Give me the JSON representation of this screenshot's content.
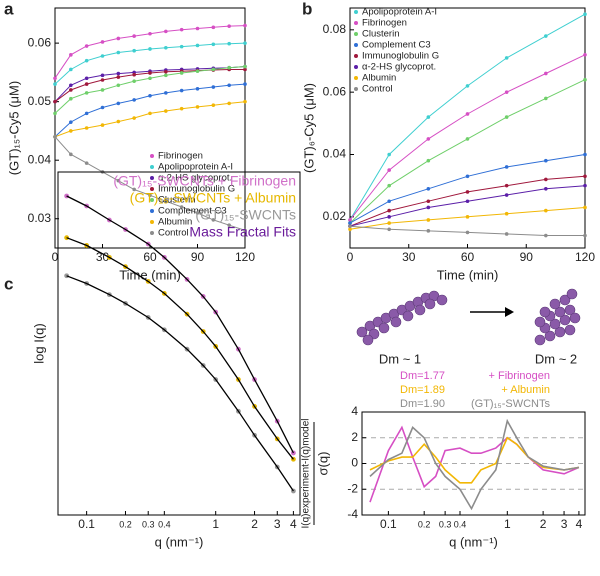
{
  "panel_labels": [
    "a",
    "b",
    "c"
  ],
  "schematic": {
    "left": "Dm ~ 1",
    "right": "Dm ~ 2"
  },
  "chart_data": [
    {
      "type": "line",
      "marker": "dots",
      "x_label": "Time (min)",
      "y_label": "(GT)₁₅-Cy5 (μM)",
      "x": [
        0,
        10,
        20,
        30,
        40,
        50,
        60,
        70,
        80,
        90,
        100,
        110,
        120
      ],
      "xlim": [
        0,
        120
      ],
      "xticks": [
        0,
        30,
        60,
        90,
        120
      ],
      "ylim": [
        0.025,
        0.066
      ],
      "yticks": [
        0.03,
        0.04,
        0.05,
        0.06
      ],
      "legend": "lower right",
      "series": [
        {
          "name": "Fibrinogen",
          "color": "#d64fc4",
          "values": [
            0.054,
            0.058,
            0.0595,
            0.0602,
            0.0608,
            0.0612,
            0.0616,
            0.062,
            0.0623,
            0.0625,
            0.0627,
            0.0629,
            0.063
          ]
        },
        {
          "name": "Apolipoprotein A-I",
          "color": "#3fcfd0",
          "values": [
            0.053,
            0.0555,
            0.057,
            0.0578,
            0.0584,
            0.0587,
            0.059,
            0.0592,
            0.0594,
            0.0596,
            0.0598,
            0.0599,
            0.06
          ]
        },
        {
          "name": "α-2-HS glycoprot.",
          "color": "#5b1fa8",
          "values": [
            0.05,
            0.0528,
            0.054,
            0.0545,
            0.0548,
            0.055,
            0.0552,
            0.0554,
            0.0555,
            0.0556,
            0.0557,
            0.0558,
            0.056
          ]
        },
        {
          "name": "Immunoglobulin G",
          "color": "#a0183c",
          "values": [
            0.05,
            0.052,
            0.053,
            0.0537,
            0.0542,
            0.0546,
            0.0549,
            0.0551,
            0.0552,
            0.0553,
            0.0554,
            0.0555,
            0.0555
          ]
        },
        {
          "name": "Clusterin",
          "color": "#6fcf6a",
          "values": [
            0.048,
            0.0505,
            0.0515,
            0.052,
            0.0528,
            0.0535,
            0.054,
            0.0545,
            0.0549,
            0.0552,
            0.0555,
            0.0558,
            0.056
          ]
        },
        {
          "name": "Complement C3",
          "color": "#2f6fd6",
          "values": [
            0.044,
            0.0465,
            0.048,
            0.049,
            0.0497,
            0.0503,
            0.051,
            0.0515,
            0.0519,
            0.0522,
            0.0525,
            0.0528,
            0.053
          ]
        },
        {
          "name": "Albumin",
          "color": "#f2b705",
          "values": [
            0.044,
            0.045,
            0.0455,
            0.046,
            0.0466,
            0.0472,
            0.048,
            0.0484,
            0.0488,
            0.0491,
            0.0494,
            0.0497,
            0.05
          ]
        },
        {
          "name": "Control",
          "color": "#8c8c8c",
          "values": [
            0.044,
            0.041,
            0.0395,
            0.038,
            0.0365,
            0.035,
            0.034,
            0.033,
            0.032,
            0.031,
            0.0298,
            0.0289,
            0.028
          ]
        }
      ]
    },
    {
      "type": "line",
      "marker": "dots",
      "x_label": "Time (min)",
      "y_label": "(GT)₆-Cy5 (μM)",
      "x": [
        0,
        20,
        40,
        60,
        80,
        100,
        120
      ],
      "xlim": [
        0,
        120
      ],
      "xticks": [
        0,
        30,
        60,
        90,
        120
      ],
      "ylim": [
        0.01,
        0.087
      ],
      "yticks": [
        0.02,
        0.04,
        0.06,
        0.08
      ],
      "legend": "upper left",
      "series": [
        {
          "name": "Apolipoprotein A-I",
          "color": "#3fcfd0",
          "values": [
            0.019,
            0.04,
            0.052,
            0.062,
            0.071,
            0.078,
            0.085
          ]
        },
        {
          "name": "Fibrinogen",
          "color": "#d64fc4",
          "values": [
            0.019,
            0.035,
            0.045,
            0.053,
            0.06,
            0.066,
            0.072
          ]
        },
        {
          "name": "Clusterin",
          "color": "#6fcf6a",
          "values": [
            0.018,
            0.03,
            0.038,
            0.045,
            0.052,
            0.058,
            0.064
          ]
        },
        {
          "name": "Complement C3",
          "color": "#2f6fd6",
          "values": [
            0.018,
            0.025,
            0.029,
            0.033,
            0.036,
            0.038,
            0.04
          ]
        },
        {
          "name": "Immunoglobulin G",
          "color": "#a0183c",
          "values": [
            0.017,
            0.022,
            0.025,
            0.028,
            0.03,
            0.032,
            0.033
          ]
        },
        {
          "name": "α-2-HS glycoprot.",
          "color": "#5b1fa8",
          "values": [
            0.017,
            0.02,
            0.023,
            0.025,
            0.027,
            0.029,
            0.03
          ]
        },
        {
          "name": "Albumin",
          "color": "#f2b705",
          "values": [
            0.016,
            0.018,
            0.019,
            0.02,
            0.021,
            0.022,
            0.023
          ]
        },
        {
          "name": "Control",
          "color": "#8c8c8c",
          "values": [
            0.017,
            0.016,
            0.0155,
            0.015,
            0.0145,
            0.014,
            0.014
          ]
        }
      ]
    },
    {
      "type": "scatter",
      "x_label": "q (nm⁻¹)",
      "y_label": "log I(q)",
      "xscale": "log",
      "yscale": "log",
      "x": [
        0.07,
        0.1,
        0.15,
        0.2,
        0.3,
        0.4,
        0.6,
        0.8,
        1,
        1.5,
        2,
        3,
        4
      ],
      "xlim": [
        0.06,
        4.5
      ],
      "xticks": [
        0.1,
        0.2,
        0.3,
        0.4,
        1,
        2,
        3,
        4
      ],
      "ylim": [
        0.0001,
        2
      ],
      "fit_label": "Mass Fractal Fits",
      "fit_label_color": "#6a1b9a",
      "fit_color": "#000000",
      "series": [
        {
          "name": "(GT)₁₅-SWCNTs + Fibrinogen",
          "color": "#d070c8",
          "values": [
            1.0,
            0.75,
            0.5,
            0.38,
            0.25,
            0.17,
            0.09,
            0.055,
            0.035,
            0.012,
            0.005,
            0.0015,
            0.0006
          ]
        },
        {
          "name": "(GT)₁₅-SWCNTs + Albumin",
          "color": "#e6b800",
          "values": [
            0.3,
            0.24,
            0.17,
            0.13,
            0.085,
            0.06,
            0.033,
            0.02,
            0.013,
            0.005,
            0.0023,
            0.0009,
            0.0005
          ]
        },
        {
          "name": "(GT)₁₅-SWCNTs",
          "color": "#999999",
          "values": [
            0.1,
            0.08,
            0.058,
            0.045,
            0.03,
            0.021,
            0.012,
            0.0075,
            0.005,
            0.002,
            0.001,
            0.0004,
            0.0002
          ]
        }
      ]
    },
    {
      "type": "line",
      "x_label": "q (nm⁻¹)",
      "y_label": "I(q)experiment-I(q)model",
      "y_label_denominator": "σ(q)",
      "xscale": "log",
      "x": [
        0.07,
        0.1,
        0.13,
        0.16,
        0.2,
        0.25,
        0.3,
        0.4,
        0.5,
        0.6,
        0.8,
        1,
        1.2,
        1.5,
        2,
        3,
        4
      ],
      "xlim": [
        0.06,
        4.5
      ],
      "xticks": [
        0.1,
        0.2,
        0.3,
        0.4,
        1,
        2,
        3,
        4
      ],
      "ylim": [
        -4,
        4
      ],
      "yticks": [
        -4,
        -2,
        0,
        2,
        4
      ],
      "reference_lines": [
        -2,
        0,
        2
      ],
      "series": [
        {
          "name": "Dm=1.77",
          "sample": "+ Fibrinogen",
          "color": "#d64fc4",
          "values": [
            -3,
            1,
            2.8,
            0.5,
            -1.8,
            -1,
            1,
            1.2,
            0.8,
            0.8,
            1.2,
            2,
            1.5,
            0.5,
            -0.5,
            -0.8,
            -0.3
          ]
        },
        {
          "name": "Dm=1.89",
          "sample": "+ Albumin",
          "color": "#f2b705",
          "values": [
            -0.5,
            0.2,
            0.5,
            0.5,
            1.5,
            0.5,
            -0.5,
            -1.5,
            -1.5,
            -0.5,
            0,
            2,
            1.5,
            0.5,
            -0.3,
            -0.5,
            -0.3
          ]
        },
        {
          "name": "Dm=1.90",
          "sample": "(GT)₁₅-SWCNTs",
          "color": "#8c8c8c",
          "values": [
            -1,
            0.3,
            0.8,
            2.8,
            2,
            0,
            -1,
            -2,
            -3.5,
            -2,
            -0.5,
            3.3,
            2,
            0.5,
            -0.2,
            -0.5,
            -0.3
          ]
        }
      ]
    }
  ]
}
